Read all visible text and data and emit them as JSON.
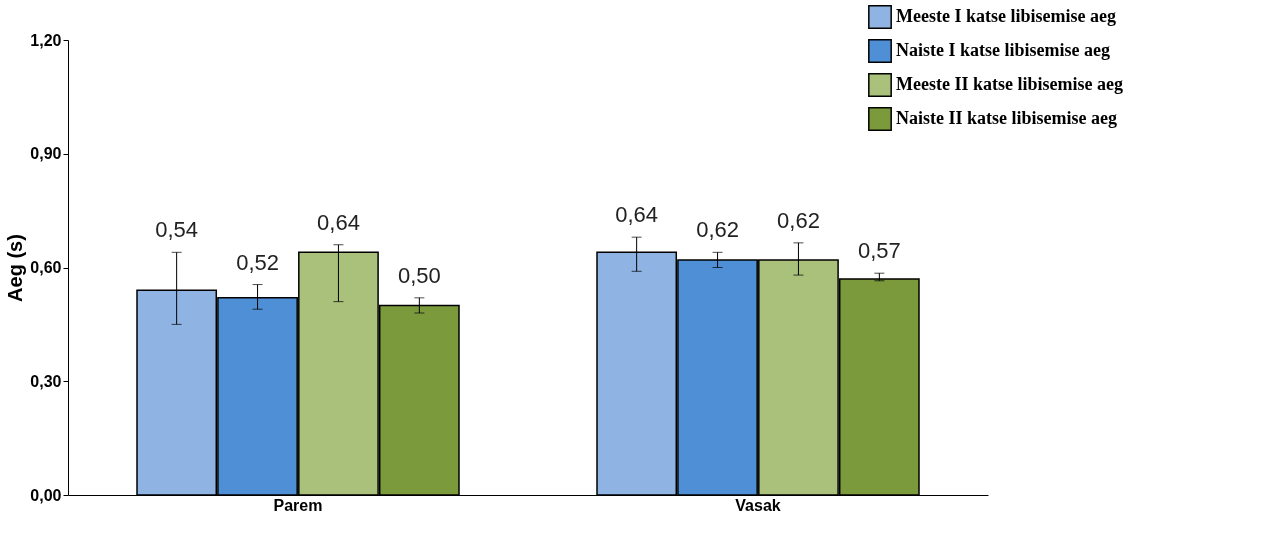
{
  "chart_data": {
    "type": "bar",
    "ylabel": "Aeg (s)",
    "categories": [
      "Parem",
      "Vasak"
    ],
    "series": [
      {
        "name": "Meeste I katse libisemise aeg",
        "color": "#8fb4e3",
        "values": [
          0.54,
          0.64
        ],
        "errors": [
          [
            0.45,
            0.64
          ],
          [
            0.59,
            0.68
          ]
        ],
        "value_labels": [
          "0,54",
          "0,64"
        ]
      },
      {
        "name": "Naiste I katse libisemise aeg",
        "color": "#4f8fd6",
        "values": [
          0.52,
          0.62
        ],
        "errors": [
          [
            0.49,
            0.555
          ],
          [
            0.6,
            0.64
          ]
        ],
        "value_labels": [
          "0,52",
          "0,62"
        ]
      },
      {
        "name": "Meeste II katse libisemise aeg",
        "color": "#a9c17a",
        "values": [
          0.64,
          0.62
        ],
        "errors": [
          [
            0.51,
            0.66
          ],
          [
            0.58,
            0.665
          ]
        ],
        "value_labels": [
          "0,64",
          "0,62"
        ]
      },
      {
        "name": "Naiste II katse libisemise aeg",
        "color": "#7a9a3c",
        "values": [
          0.5,
          0.57
        ],
        "errors": [
          [
            0.48,
            0.52
          ],
          [
            0.565,
            0.585
          ]
        ],
        "value_labels": [
          "0,50",
          "0,57"
        ]
      }
    ],
    "ylim": [
      0,
      1.2
    ],
    "yticks": [
      {
        "value": 0,
        "label": "0,00"
      },
      {
        "value": 0.3,
        "label": "0,30"
      },
      {
        "value": 0.6,
        "label": "0,60"
      },
      {
        "value": 0.9,
        "label": "0,90"
      },
      {
        "value": 1.2,
        "label": "1,20"
      }
    ],
    "grid": false,
    "legend": "top right"
  }
}
